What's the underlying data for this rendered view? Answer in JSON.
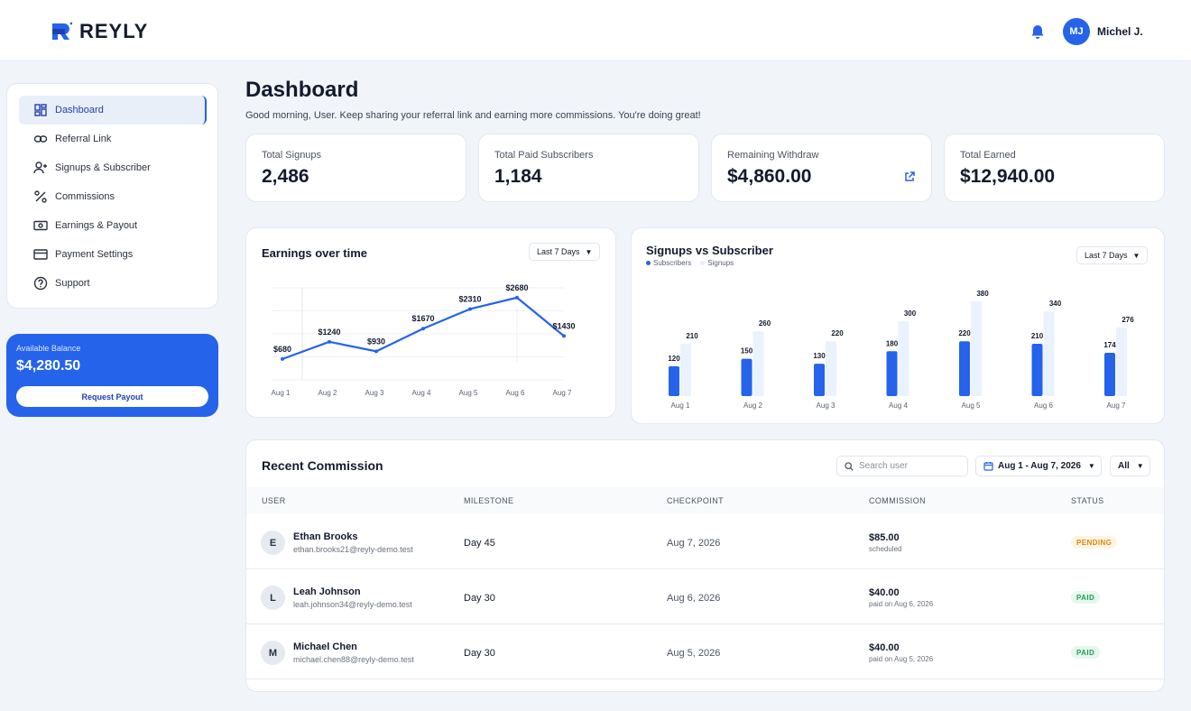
{
  "brand": {
    "name": "REYLY"
  },
  "user": {
    "initials": "MJ",
    "name": "Michel J."
  },
  "sidebar": {
    "items": [
      {
        "label": "Dashboard",
        "icon": "dashboard-icon",
        "active": true
      },
      {
        "label": "Referral Link",
        "icon": "link-icon"
      },
      {
        "label": "Signups & Subscriber",
        "icon": "user-plus-icon"
      },
      {
        "label": "Commissions",
        "icon": "percent-icon"
      },
      {
        "label": "Earnings & Payout",
        "icon": "cash-icon"
      },
      {
        "label": "Payment Settings",
        "icon": "card-icon"
      },
      {
        "label": "Support",
        "icon": "help-icon"
      }
    ]
  },
  "balance": {
    "label": "Available Balance",
    "value": "$4,280.50",
    "button": "Request Payout"
  },
  "header": {
    "title": "Dashboard",
    "subtitle": "Good morning, User. Keep sharing your referral link and earning more commissions. You're doing great!"
  },
  "stats": [
    {
      "label": "Total Signups",
      "value": "2,486"
    },
    {
      "label": "Total Paid Subscribers",
      "value": "1,184"
    },
    {
      "label": "Remaining Withdraw",
      "value": "$4,860.00",
      "icon": "external-link-icon"
    },
    {
      "label": "Total Earned",
      "value": "$12,940.00"
    }
  ],
  "earnings_chart": {
    "title": "Earnings over time",
    "range": "Last 7 Days",
    "chart_data": {
      "type": "line",
      "categories": [
        "Aug 1",
        "Aug 2",
        "Aug 3",
        "Aug 4",
        "Aug 5",
        "Aug 6",
        "Aug 7"
      ],
      "series": [
        {
          "values": [
            680,
            1240,
            930,
            1670,
            2310,
            2680,
            1430
          ],
          "labels": [
            "$680",
            "$1240",
            "$930",
            "$1670",
            "$2310",
            "$2680",
            "$1430"
          ]
        }
      ],
      "ylim": [
        0,
        3000
      ]
    }
  },
  "signups_chart": {
    "title": "Signups vs Subscriber",
    "range": "Last 7 Days",
    "legend": [
      "Subscribers",
      "Signups"
    ],
    "chart_data": {
      "type": "bar",
      "categories": [
        "Aug 1",
        "Aug 2",
        "Aug 3",
        "Aug 4",
        "Aug 5",
        "Aug 6",
        "Aug 7"
      ],
      "series": [
        {
          "name": "Subscribers",
          "values": [
            120,
            150,
            130,
            180,
            220,
            210,
            174
          ],
          "color": "#2563eb"
        },
        {
          "name": "Signups",
          "values": [
            210,
            260,
            220,
            300,
            380,
            340,
            276
          ],
          "color": "#eaf2fe"
        }
      ],
      "ylim": [
        0,
        420
      ]
    }
  },
  "recent": {
    "title": "Recent Commission",
    "search_placeholder": "Search user",
    "date_range": "Aug 1 - Aug 7, 2026",
    "filter": "All",
    "columns": [
      "USER",
      "MILESTONE",
      "CHECKPOINT",
      "COMMISSION",
      "STATUS"
    ],
    "rows": [
      {
        "initial": "E",
        "name": "Ethan Brooks",
        "email": "ethan.brooks21@reyly-demo.test",
        "milestone": "Day 45",
        "checkpoint": "Aug 7, 2026",
        "amount": "$85.00",
        "note": "scheduled",
        "status": "PENDING"
      },
      {
        "initial": "L",
        "name": "Leah Johnson",
        "email": "leah.johnson34@reyly-demo.test",
        "milestone": "Day 30",
        "checkpoint": "Aug 6, 2026",
        "amount": "$40.00",
        "note": "paid on Aug 6, 2026",
        "status": "PAID"
      },
      {
        "initial": "M",
        "name": "Michael Chen",
        "email": "michael.chen88@reyly-demo.test",
        "milestone": "Day 30",
        "checkpoint": "Aug 5, 2026",
        "amount": "$40.00",
        "note": "paid on Aug 5, 2026",
        "status": "PAID"
      }
    ]
  }
}
